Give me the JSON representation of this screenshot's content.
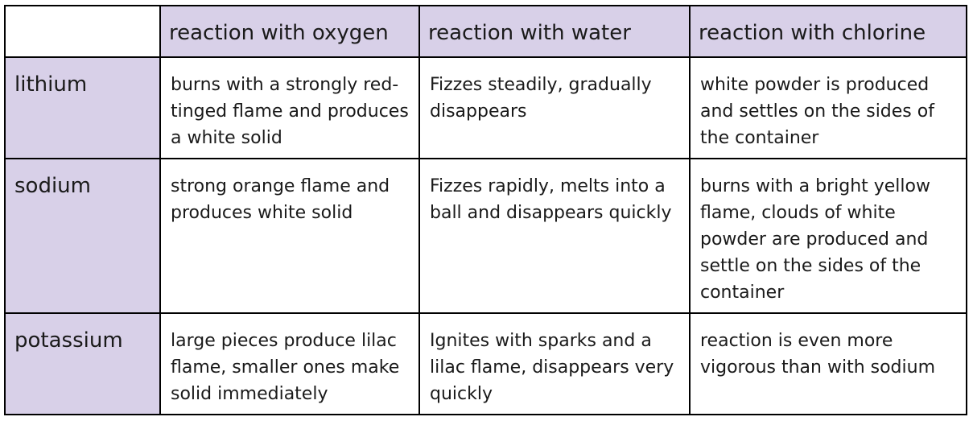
{
  "table": {
    "headers": [
      "",
      "reaction with oxygen",
      "reaction with water",
      "reaction with chlorine"
    ],
    "rows": [
      {
        "metal": "lithium",
        "oxygen": "burns with a strongly red-tinged flame and produces a white solid",
        "water": "Fizzes steadily, gradually disappears",
        "chlorine": "white powder is produced and settles on the sides of the container"
      },
      {
        "metal": "sodium",
        "oxygen": "strong orange flame and produces white solid",
        "water": "Fizzes rapidly, melts into a ball and disappears quickly",
        "chlorine": "burns with a bright yellow flame, clouds of white powder are produced and settle on the sides of the container"
      },
      {
        "metal": "potassium",
        "oxygen": "large pieces produce lilac flame, smaller ones make solid immediately",
        "water": "Ignites with sparks and a lilac flame, disappears very quickly",
        "chlorine": "reaction is even more vigorous than with sodium"
      }
    ]
  },
  "colors": {
    "header_fill": "#d8d0e8",
    "border": "#000000"
  }
}
